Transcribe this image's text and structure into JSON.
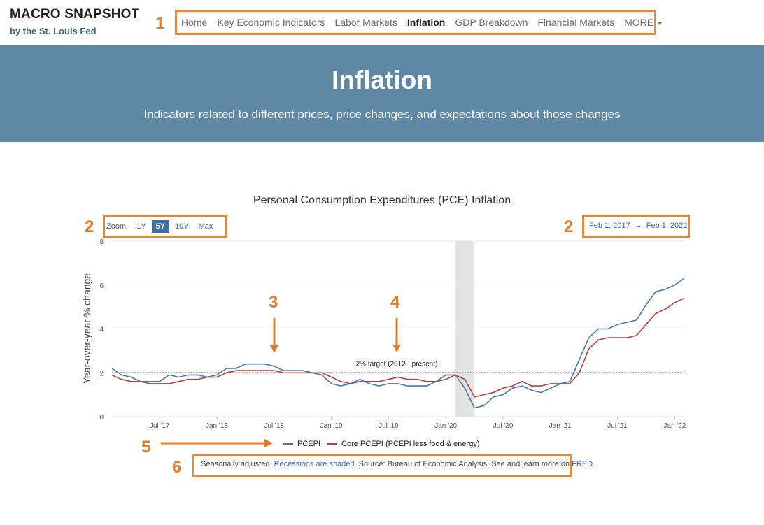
{
  "header": {
    "brand_title": "MACRO SNAPSHOT",
    "brand_subtitle": "by the St. Louis Fed",
    "nav": [
      {
        "label": "Home"
      },
      {
        "label": "Key Economic Indicators"
      },
      {
        "label": "Labor Markets"
      },
      {
        "label": "Inflation",
        "active": true
      },
      {
        "label": "GDP Breakdown"
      },
      {
        "label": "Financial Markets"
      },
      {
        "label": "MORE",
        "dropdown": true
      }
    ]
  },
  "hero": {
    "title": "Inflation",
    "subtitle": "Indicators related to different prices, price changes, and expectations about those changes"
  },
  "chart_controls": {
    "zoom_label": "Zoom",
    "zoom_options": [
      "1Y",
      "5Y",
      "10Y",
      "Max"
    ],
    "zoom_selected": "5Y",
    "date_from": "Feb 1, 2017",
    "date_arrow": "→",
    "date_to": "Feb 1, 2022"
  },
  "callouts": [
    "1",
    "2",
    "2",
    "3",
    "4",
    "5",
    "6"
  ],
  "footer": {
    "text_1": "Seasonally adjusted. ",
    "link_recessions": "Recessions are shaded",
    "text_2": ". Source: Bureau of Economic Analysis. See and learn more on ",
    "link_fred": "FRED",
    "text_3": "."
  },
  "colors": {
    "hero_bg": "#5e88a3",
    "callout_orange": "#e07d2c",
    "pcepi": "#4a76a8",
    "core_pcepi": "#a8443f",
    "recession_shade": "#e3e3e3"
  },
  "chart_data": {
    "type": "line",
    "title": "Personal Consumption Expenditures (PCE) Inflation",
    "ylabel": "Year-over-year % change",
    "xlabel": "",
    "ylim": [
      0,
      8
    ],
    "y_ticks": [
      0,
      2,
      4,
      6,
      8
    ],
    "x_tick_labels": [
      {
        "label": "Jul '17",
        "date": "2017-07"
      },
      {
        "label": "Jan '18",
        "date": "2018-01"
      },
      {
        "label": "Jul '18",
        "date": "2018-07"
      },
      {
        "label": "Jan '19",
        "date": "2019-01"
      },
      {
        "label": "Jul '19",
        "date": "2019-07"
      },
      {
        "label": "Jan '20",
        "date": "2020-01"
      },
      {
        "label": "Jul '20",
        "date": "2020-07"
      },
      {
        "label": "Jan '21",
        "date": "2021-01"
      },
      {
        "label": "Jul '21",
        "date": "2021-07"
      },
      {
        "label": "Jan '22",
        "date": "2022-01"
      }
    ],
    "x_range": [
      "2017-02",
      "2022-02"
    ],
    "recession": {
      "start": "2020-02",
      "end": "2020-04"
    },
    "target_line": {
      "value": 2,
      "label": "2% target (2012 - present)"
    },
    "grid": true,
    "legend_position": "bottom",
    "series": [
      {
        "name": "PCEPI",
        "dates": [
          "2017-02",
          "2017-03",
          "2017-04",
          "2017-05",
          "2017-06",
          "2017-07",
          "2017-08",
          "2017-09",
          "2017-10",
          "2017-11",
          "2017-12",
          "2018-01",
          "2018-02",
          "2018-03",
          "2018-04",
          "2018-05",
          "2018-06",
          "2018-07",
          "2018-08",
          "2018-09",
          "2018-10",
          "2018-11",
          "2018-12",
          "2019-01",
          "2019-02",
          "2019-03",
          "2019-04",
          "2019-05",
          "2019-06",
          "2019-07",
          "2019-08",
          "2019-09",
          "2019-10",
          "2019-11",
          "2019-12",
          "2020-01",
          "2020-02",
          "2020-03",
          "2020-04",
          "2020-05",
          "2020-06",
          "2020-07",
          "2020-08",
          "2020-09",
          "2020-10",
          "2020-11",
          "2020-12",
          "2021-01",
          "2021-02",
          "2021-03",
          "2021-04",
          "2021-05",
          "2021-06",
          "2021-07",
          "2021-08",
          "2021-09",
          "2021-10",
          "2021-11",
          "2021-12",
          "2022-01",
          "2022-02"
        ],
        "values": [
          2.2,
          1.9,
          1.8,
          1.6,
          1.6,
          1.6,
          1.9,
          1.8,
          1.9,
          1.9,
          1.8,
          1.9,
          2.2,
          2.2,
          2.4,
          2.4,
          2.4,
          2.3,
          2.1,
          2.1,
          2.1,
          2.0,
          1.9,
          1.5,
          1.4,
          1.5,
          1.7,
          1.5,
          1.4,
          1.5,
          1.5,
          1.4,
          1.4,
          1.4,
          1.6,
          1.9,
          1.9,
          1.3,
          0.4,
          0.5,
          0.9,
          1.0,
          1.3,
          1.4,
          1.2,
          1.1,
          1.3,
          1.5,
          1.6,
          2.6,
          3.6,
          4.0,
          4.0,
          4.2,
          4.3,
          4.4,
          5.1,
          5.7,
          5.8,
          6.0,
          6.3
        ]
      },
      {
        "name": "Core PCEPI (PCEPI less food & energy)",
        "dates": [
          "2017-02",
          "2017-03",
          "2017-04",
          "2017-05",
          "2017-06",
          "2017-07",
          "2017-08",
          "2017-09",
          "2017-10",
          "2017-11",
          "2017-12",
          "2018-01",
          "2018-02",
          "2018-03",
          "2018-04",
          "2018-05",
          "2018-06",
          "2018-07",
          "2018-08",
          "2018-09",
          "2018-10",
          "2018-11",
          "2018-12",
          "2019-01",
          "2019-02",
          "2019-03",
          "2019-04",
          "2019-05",
          "2019-06",
          "2019-07",
          "2019-08",
          "2019-09",
          "2019-10",
          "2019-11",
          "2019-12",
          "2020-01",
          "2020-02",
          "2020-03",
          "2020-04",
          "2020-05",
          "2020-06",
          "2020-07",
          "2020-08",
          "2020-09",
          "2020-10",
          "2020-11",
          "2020-12",
          "2021-01",
          "2021-02",
          "2021-03",
          "2021-04",
          "2021-05",
          "2021-06",
          "2021-07",
          "2021-08",
          "2021-09",
          "2021-10",
          "2021-11",
          "2021-12",
          "2022-01",
          "2022-02"
        ],
        "values": [
          1.9,
          1.7,
          1.6,
          1.6,
          1.5,
          1.5,
          1.5,
          1.6,
          1.7,
          1.7,
          1.8,
          1.8,
          2.0,
          2.1,
          2.1,
          2.1,
          2.1,
          2.1,
          2.0,
          2.0,
          2.0,
          2.0,
          2.0,
          1.8,
          1.6,
          1.5,
          1.6,
          1.6,
          1.6,
          1.7,
          1.8,
          1.7,
          1.7,
          1.6,
          1.6,
          1.7,
          1.9,
          1.7,
          0.9,
          1.0,
          1.1,
          1.3,
          1.4,
          1.6,
          1.4,
          1.4,
          1.5,
          1.5,
          1.5,
          2.0,
          3.1,
          3.5,
          3.6,
          3.6,
          3.6,
          3.7,
          4.2,
          4.7,
          4.9,
          5.2,
          5.4
        ]
      }
    ]
  }
}
